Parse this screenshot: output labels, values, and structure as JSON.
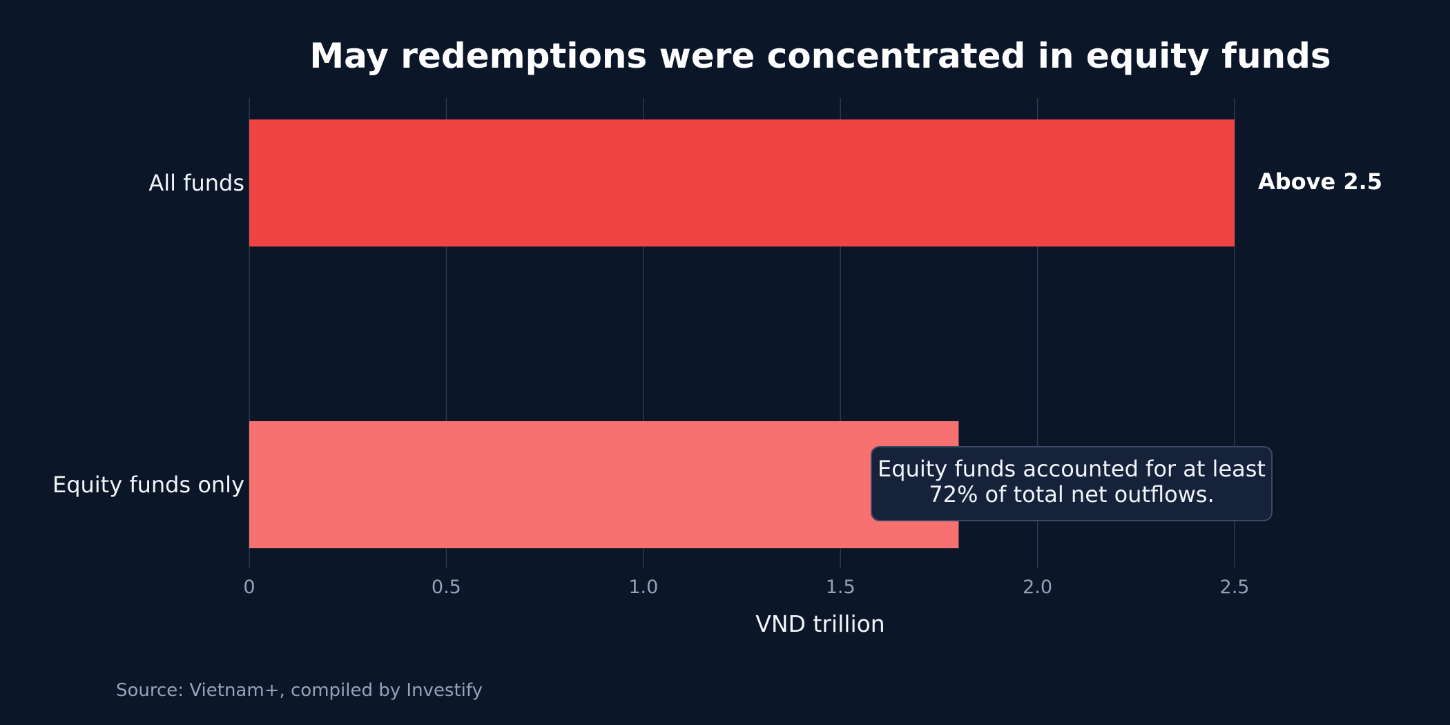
{
  "chart_data": {
    "type": "bar",
    "orientation": "horizontal",
    "title": "May redemptions were concentrated in equity funds",
    "categories": [
      "All funds",
      "Equity funds only"
    ],
    "values": [
      2.5,
      1.8
    ],
    "value_labels": [
      "Above 2.5",
      ""
    ],
    "colors": [
      "#ef4444",
      "#f87171"
    ],
    "xlabel": "VND trillion",
    "xlim": [
      0,
      2.5
    ],
    "xticks": [
      0,
      0.5,
      1.0,
      1.5,
      2.0,
      2.5
    ],
    "xtick_labels": [
      "0",
      "0.5",
      "1.0",
      "1.5",
      "2.0",
      "2.5"
    ],
    "grid": "vertical",
    "annotation": {
      "lines": [
        "Equity funds accounted for at least",
        "72% of total net outflows."
      ]
    },
    "source": "Source: Vietnam+, compiled by Investify"
  }
}
